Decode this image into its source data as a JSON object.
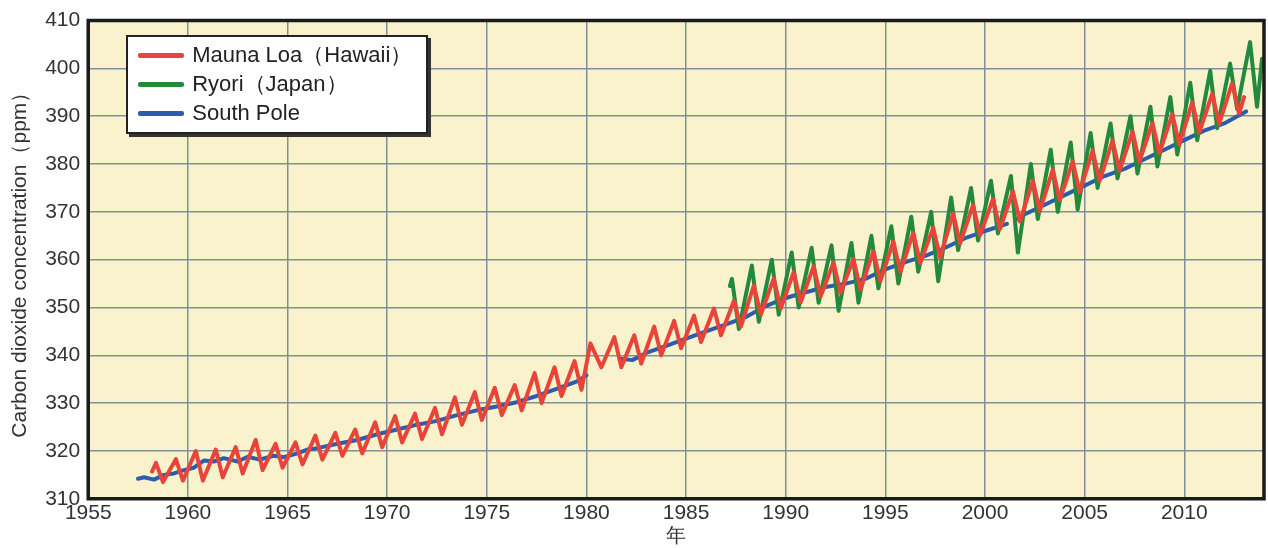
{
  "chart_data": {
    "type": "line",
    "xlabel": "年",
    "ylabel": "Carbon dioxide concentration（ppm）",
    "xlim": [
      1955,
      2014
    ],
    "xticks": [
      1955,
      1960,
      1965,
      1970,
      1975,
      1980,
      1985,
      1990,
      1995,
      2000,
      2005,
      2010
    ],
    "ylim": [
      310,
      410
    ],
    "yticks": [
      310,
      320,
      330,
      340,
      350,
      360,
      370,
      380,
      390,
      400,
      410
    ],
    "grid": true,
    "legend": "top left",
    "marker": "none",
    "line_style": "solid",
    "series": [
      {
        "name": "Mauna Loa（Hawaii）",
        "color": "#e8443a",
        "x": [
          1958.2,
          1958.4,
          1958.75,
          1959.4,
          1959.75,
          1960.4,
          1960.75,
          1961.4,
          1961.75,
          1962.4,
          1962.75,
          1963.4,
          1963.75,
          1964.4,
          1964.75,
          1965.4,
          1965.75,
          1966.4,
          1966.75,
          1967.4,
          1967.75,
          1968.4,
          1968.75,
          1969.4,
          1969.75,
          1970.4,
          1970.75,
          1971.4,
          1971.75,
          1972.4,
          1972.75,
          1973.4,
          1973.75,
          1974.4,
          1974.75,
          1975.4,
          1975.75,
          1976.4,
          1976.75,
          1977.4,
          1977.75,
          1978.4,
          1978.75,
          1979.4,
          1979.75,
          1980.2,
          1980.75,
          1981.4,
          1981.75,
          1982.4,
          1982.75,
          1983.4,
          1983.75,
          1984.4,
          1984.75,
          1985.4,
          1985.75,
          1986.4,
          1986.75,
          1987.4,
          1987.75,
          1988.4,
          1988.75,
          1989.4,
          1989.75,
          1990.4,
          1990.75,
          1991.4,
          1991.75,
          1992.4,
          1992.75,
          1993.4,
          1993.75,
          1994.4,
          1994.75,
          1995.4,
          1995.75,
          1996.4,
          1996.75,
          1997.4,
          1997.75,
          1998.4,
          1998.75,
          1999.4,
          1999.75,
          2000.4,
          2000.75,
          2001.4,
          2001.75,
          2002.4,
          2002.75,
          2003.4,
          2003.75,
          2004.4,
          2004.75,
          2005.4,
          2005.75,
          2006.4,
          2006.75,
          2007.4,
          2007.75,
          2008.4,
          2008.75,
          2009.4,
          2009.75,
          2010.4,
          2010.75,
          2011.4,
          2011.75,
          2012.4,
          2012.75,
          2013.0
        ],
        "values": [
          315.7,
          317.5,
          313.5,
          318.3,
          313.8,
          320,
          313.8,
          320.3,
          314.5,
          320.8,
          315.3,
          322.3,
          316,
          321.5,
          316.5,
          321.8,
          317.2,
          323.2,
          318.2,
          323.8,
          319,
          324.5,
          319.5,
          326,
          320.8,
          327.3,
          321.8,
          327.8,
          322.5,
          329,
          323.5,
          331.2,
          325.5,
          332.3,
          326.5,
          333.2,
          327.5,
          333.8,
          328.5,
          336.3,
          330,
          337.5,
          331.5,
          338.8,
          332.8,
          342.5,
          337.5,
          343.8,
          337.5,
          344.2,
          338.3,
          346,
          340,
          347.2,
          341.5,
          348.3,
          342.8,
          349.8,
          344.2,
          351.4,
          346,
          354.6,
          348.5,
          356.1,
          349.8,
          357.4,
          351.1,
          358.6,
          352.3,
          359.4,
          353.1,
          360.1,
          353.8,
          361.8,
          355.5,
          363.8,
          357.5,
          365.6,
          359.3,
          366.7,
          360.4,
          369.7,
          363.4,
          371.4,
          365.1,
          372.7,
          366.4,
          374.3,
          368,
          376.5,
          370.2,
          378.8,
          372.5,
          380.5,
          374.2,
          382.8,
          376.5,
          384.9,
          378.6,
          386.8,
          380.5,
          388.6,
          382.3,
          390.4,
          384.1,
          392.9,
          386.6,
          394.7,
          388.4,
          396.9,
          390.6,
          394
        ]
      },
      {
        "name": "Ryori（Japan）",
        "color": "#238a3c",
        "x": [
          1987.2,
          1987.3,
          1987.65,
          1988.3,
          1988.65,
          1989.3,
          1989.65,
          1990.3,
          1990.65,
          1991.3,
          1991.65,
          1992.3,
          1992.65,
          1993.3,
          1993.65,
          1994.3,
          1994.65,
          1995.3,
          1995.65,
          1996.3,
          1996.65,
          1997.3,
          1997.65,
          1998.3,
          1998.65,
          1999.3,
          1999.65,
          2000.3,
          2000.65,
          2001.3,
          2001.65,
          2002.3,
          2002.65,
          2003.3,
          2003.65,
          2004.3,
          2004.65,
          2005.3,
          2005.65,
          2006.3,
          2006.65,
          2007.3,
          2007.65,
          2008.3,
          2008.65,
          2009.3,
          2009.65,
          2010.3,
          2010.65,
          2011.3,
          2011.65,
          2012.3,
          2012.65,
          2013.3,
          2013.65,
          2013.9
        ],
        "values": [
          354.5,
          356,
          345.5,
          358.8,
          347,
          360,
          348.5,
          361.5,
          350,
          362.5,
          351,
          363,
          349.3,
          363.5,
          351,
          365,
          354,
          367,
          355,
          369,
          357.5,
          370,
          355.5,
          373,
          362,
          375,
          364,
          376.5,
          365.5,
          377.5,
          361.5,
          380,
          368.5,
          383,
          370,
          384.5,
          370.5,
          386.5,
          375,
          388.5,
          377,
          390,
          378,
          392,
          379.5,
          394,
          382,
          397,
          385,
          399.5,
          387.5,
          401,
          391.5,
          405.5,
          392,
          402
        ]
      },
      {
        "name": "South Pole",
        "color": "#2a5db0",
        "x": [
          1957.5,
          1957.8,
          1958.3,
          1958.8,
          1959.3,
          1959.8,
          1960.3,
          1960.8,
          1961.3,
          1961.8,
          1962.5,
          1963,
          1963.6,
          1964.3,
          1964.8,
          1965.5,
          1966,
          1966.5,
          1967.5,
          1968.5,
          1969.5,
          1970.5,
          1971.5,
          1972.5,
          1973.5,
          1974.5,
          1975.5,
          1976.5,
          1977.5,
          1978.5,
          1979.5,
          1980,
          1980.8,
          1981.7,
          1982.3,
          1983,
          1984,
          1985,
          1986,
          1987,
          1988,
          1989,
          1990,
          1991,
          1992,
          1993,
          1994,
          1995,
          1996,
          1997,
          1998,
          1999,
          2000,
          2001.1,
          2001.4,
          2001.6,
          2002,
          2003,
          2004,
          2005,
          2006,
          2007,
          2008,
          2009,
          2010,
          2011,
          2012,
          2013.1
        ],
        "values": [
          314.2,
          314.5,
          314,
          315,
          315.3,
          316,
          316.5,
          318,
          317.8,
          318.5,
          317.8,
          318.8,
          318.2,
          319,
          318.7,
          319.5,
          320.3,
          320.6,
          321.5,
          322.3,
          323.5,
          324.5,
          325.5,
          326.3,
          327.5,
          328.5,
          329.3,
          330.2,
          331.5,
          333,
          334.5,
          335.8,
          null,
          339.3,
          339,
          340.5,
          342,
          343.5,
          345,
          346.5,
          348,
          350.3,
          352,
          353.2,
          354.3,
          355,
          356,
          358,
          359.5,
          360.8,
          362.5,
          364.5,
          366,
          367.5,
          null,
          368.5,
          369.5,
          371.5,
          373.5,
          375.5,
          377.5,
          379,
          381,
          383,
          385,
          387,
          388.5,
          391
        ]
      }
    ]
  }
}
